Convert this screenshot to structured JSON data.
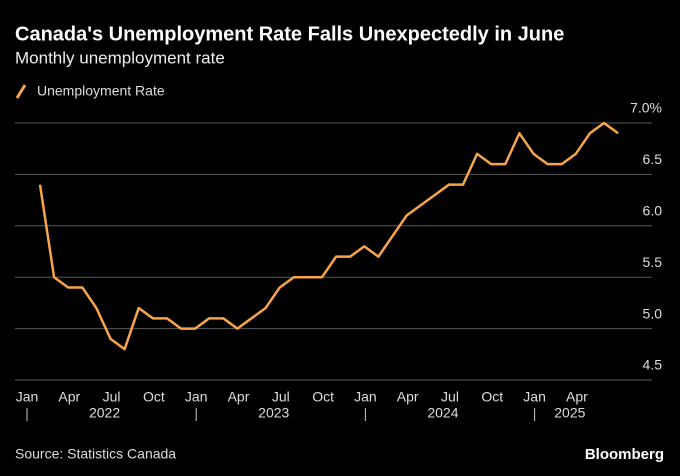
{
  "chart_data": {
    "type": "line",
    "title": "Canada's Unemployment Rate Falls Unexpectedly in June",
    "subtitle": "Monthly unemployment rate",
    "source": "Source: Statistics Canada",
    "brand": "Bloomberg",
    "categories": [
      "Jan",
      null,
      null,
      "Apr",
      null,
      null,
      "Jul",
      null,
      null,
      "Oct",
      null,
      null,
      "Jan",
      null,
      null,
      "Apr",
      null,
      null,
      "Jul",
      null,
      null,
      "Oct",
      null,
      null,
      "Jan",
      null,
      null,
      "Apr",
      null,
      null,
      "Jul",
      null,
      null,
      "Oct",
      null,
      null,
      "Jan",
      null,
      null,
      "Apr",
      null,
      null
    ],
    "year_labels": [
      "2022",
      "2023",
      "2024",
      "2025"
    ],
    "series": [
      {
        "name": "Unemployment Rate",
        "color": "#f7a54a",
        "values": [
          6.4,
          5.5,
          5.4,
          5.4,
          5.2,
          4.9,
          4.8,
          5.2,
          5.1,
          5.1,
          5.0,
          5.0,
          5.1,
          5.1,
          5.0,
          5.1,
          5.2,
          5.4,
          5.5,
          5.5,
          5.5,
          5.7,
          5.7,
          5.8,
          5.7,
          5.9,
          6.1,
          6.2,
          6.3,
          6.4,
          6.4,
          6.7,
          6.6,
          6.6,
          6.9,
          6.7,
          6.6,
          6.6,
          6.7,
          6.9,
          7.0,
          6.9
        ]
      }
    ],
    "ylim": [
      4.5,
      7.0
    ],
    "yticks": [
      4.5,
      {
        "value": 5,
        "label": "5.0"
      },
      5.5,
      {
        "value": 6,
        "label": "6.0"
      },
      6.5,
      {
        "value": 7,
        "label": "7.0%"
      }
    ],
    "grid": true,
    "legend": "top-left"
  }
}
